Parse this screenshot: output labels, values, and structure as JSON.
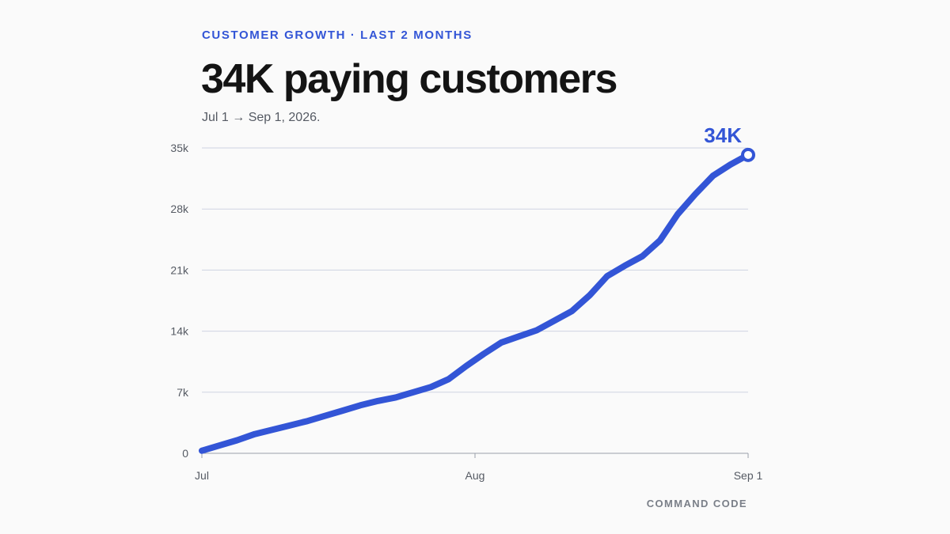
{
  "header": {
    "eyebrow": "CUSTOMER GROWTH · LAST 2 MONTHS",
    "headline": "34K paying customers",
    "subtitle": "Jul 1 → Sep 1, 2026."
  },
  "footer": {
    "credit": "COMMAND CODE"
  },
  "colors": {
    "accent": "#3355d6",
    "grid": "#cfd3e2",
    "text": "#141414"
  },
  "chart_data": {
    "type": "line",
    "title": "",
    "xlabel": "",
    "ylabel": "",
    "ylim": [
      0,
      35000
    ],
    "xlim": [
      "2026-07-01",
      "2026-09-01"
    ],
    "yticks": [
      0,
      7000,
      14000,
      21000,
      28000,
      35000
    ],
    "ytick_labels": [
      "0",
      "7k",
      "14k",
      "21k",
      "28k",
      "35k"
    ],
    "xticks": [
      "2026-07-01",
      "2026-08-01",
      "2026-09-01"
    ],
    "xtick_labels": [
      "Jul",
      "Aug",
      "Sep 1"
    ],
    "grid": true,
    "end_label": "34K",
    "series": [
      {
        "color": "#3355d6",
        "x": [
          "2026-07-01",
          "2026-07-03",
          "2026-07-05",
          "2026-07-07",
          "2026-07-09",
          "2026-07-11",
          "2026-07-13",
          "2026-07-15",
          "2026-07-17",
          "2026-07-19",
          "2026-07-21",
          "2026-07-23",
          "2026-07-25",
          "2026-07-27",
          "2026-07-29",
          "2026-07-31",
          "2026-08-02",
          "2026-08-04",
          "2026-08-06",
          "2026-08-08",
          "2026-08-10",
          "2026-08-12",
          "2026-08-14",
          "2026-08-16",
          "2026-08-18",
          "2026-08-20",
          "2026-08-22",
          "2026-08-24",
          "2026-08-26",
          "2026-08-28",
          "2026-08-30",
          "2026-09-01"
        ],
        "values": [
          300,
          900,
          1500,
          2200,
          2700,
          3200,
          3700,
          4300,
          4900,
          5500,
          6000,
          6400,
          7000,
          7600,
          8500,
          10000,
          11400,
          12700,
          13400,
          14100,
          15200,
          16300,
          18100,
          20300,
          21500,
          22600,
          24400,
          27400,
          29700,
          31800,
          33100,
          34200
        ]
      }
    ]
  }
}
